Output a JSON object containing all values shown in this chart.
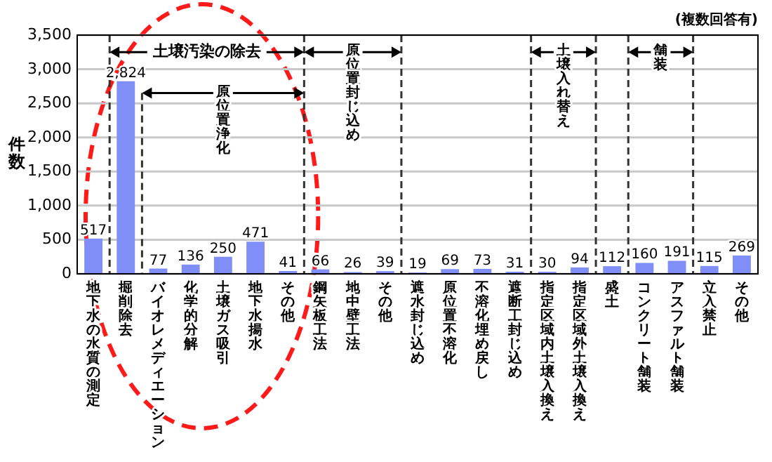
{
  "chart_data": {
    "type": "bar",
    "ylabel": "件数",
    "categories": [
      "地下水の水質の測定",
      "掘削除去",
      "バイオレメディエーション",
      "化学的分解",
      "土壌ガス吸引",
      "地下水揚水",
      "その他",
      "鋼矢板工法",
      "地中壁工法",
      "その他",
      "遮水封じ込め",
      "原位置不溶化",
      "不溶化埋め戻し",
      "遮断工封じ込め",
      "指定区域内土壌入換え",
      "指定区域外土壌入換え",
      "盛土",
      "コンクリート舗装",
      "アスファルト舗装",
      "立入禁止",
      "その他"
    ],
    "values": [
      517,
      2824,
      77,
      136,
      250,
      471,
      41,
      66,
      26,
      39,
      19,
      69,
      73,
      31,
      30,
      94,
      112,
      160,
      191,
      115,
      269
    ],
    "value_labels": [
      "517",
      "2,824",
      "77",
      "136",
      "250",
      "471",
      "41",
      "66",
      "26",
      "39",
      "19",
      "69",
      "73",
      "31",
      "30",
      "94",
      "112",
      "160",
      "191",
      "115",
      "269"
    ],
    "color": "#7f8ff7",
    "ylim": [
      0,
      3500
    ],
    "yticks": [
      0,
      500,
      {
        "value": 1000,
        "label": "1,000"
      },
      {
        "value": 1500,
        "label": "1,500"
      },
      {
        "value": 2000,
        "label": "2,000"
      },
      {
        "value": 2500,
        "label": "2,500"
      },
      {
        "value": 3000,
        "label": "3,000"
      },
      {
        "value": 3500,
        "label": "3,500"
      }
    ],
    "grid": "y",
    "annotations": [
      "土壌汚染の除去",
      "原位置浄化",
      "原位置封じ込め",
      "土壌入れ替え",
      "舗装",
      "(複数回答有)"
    ]
  }
}
